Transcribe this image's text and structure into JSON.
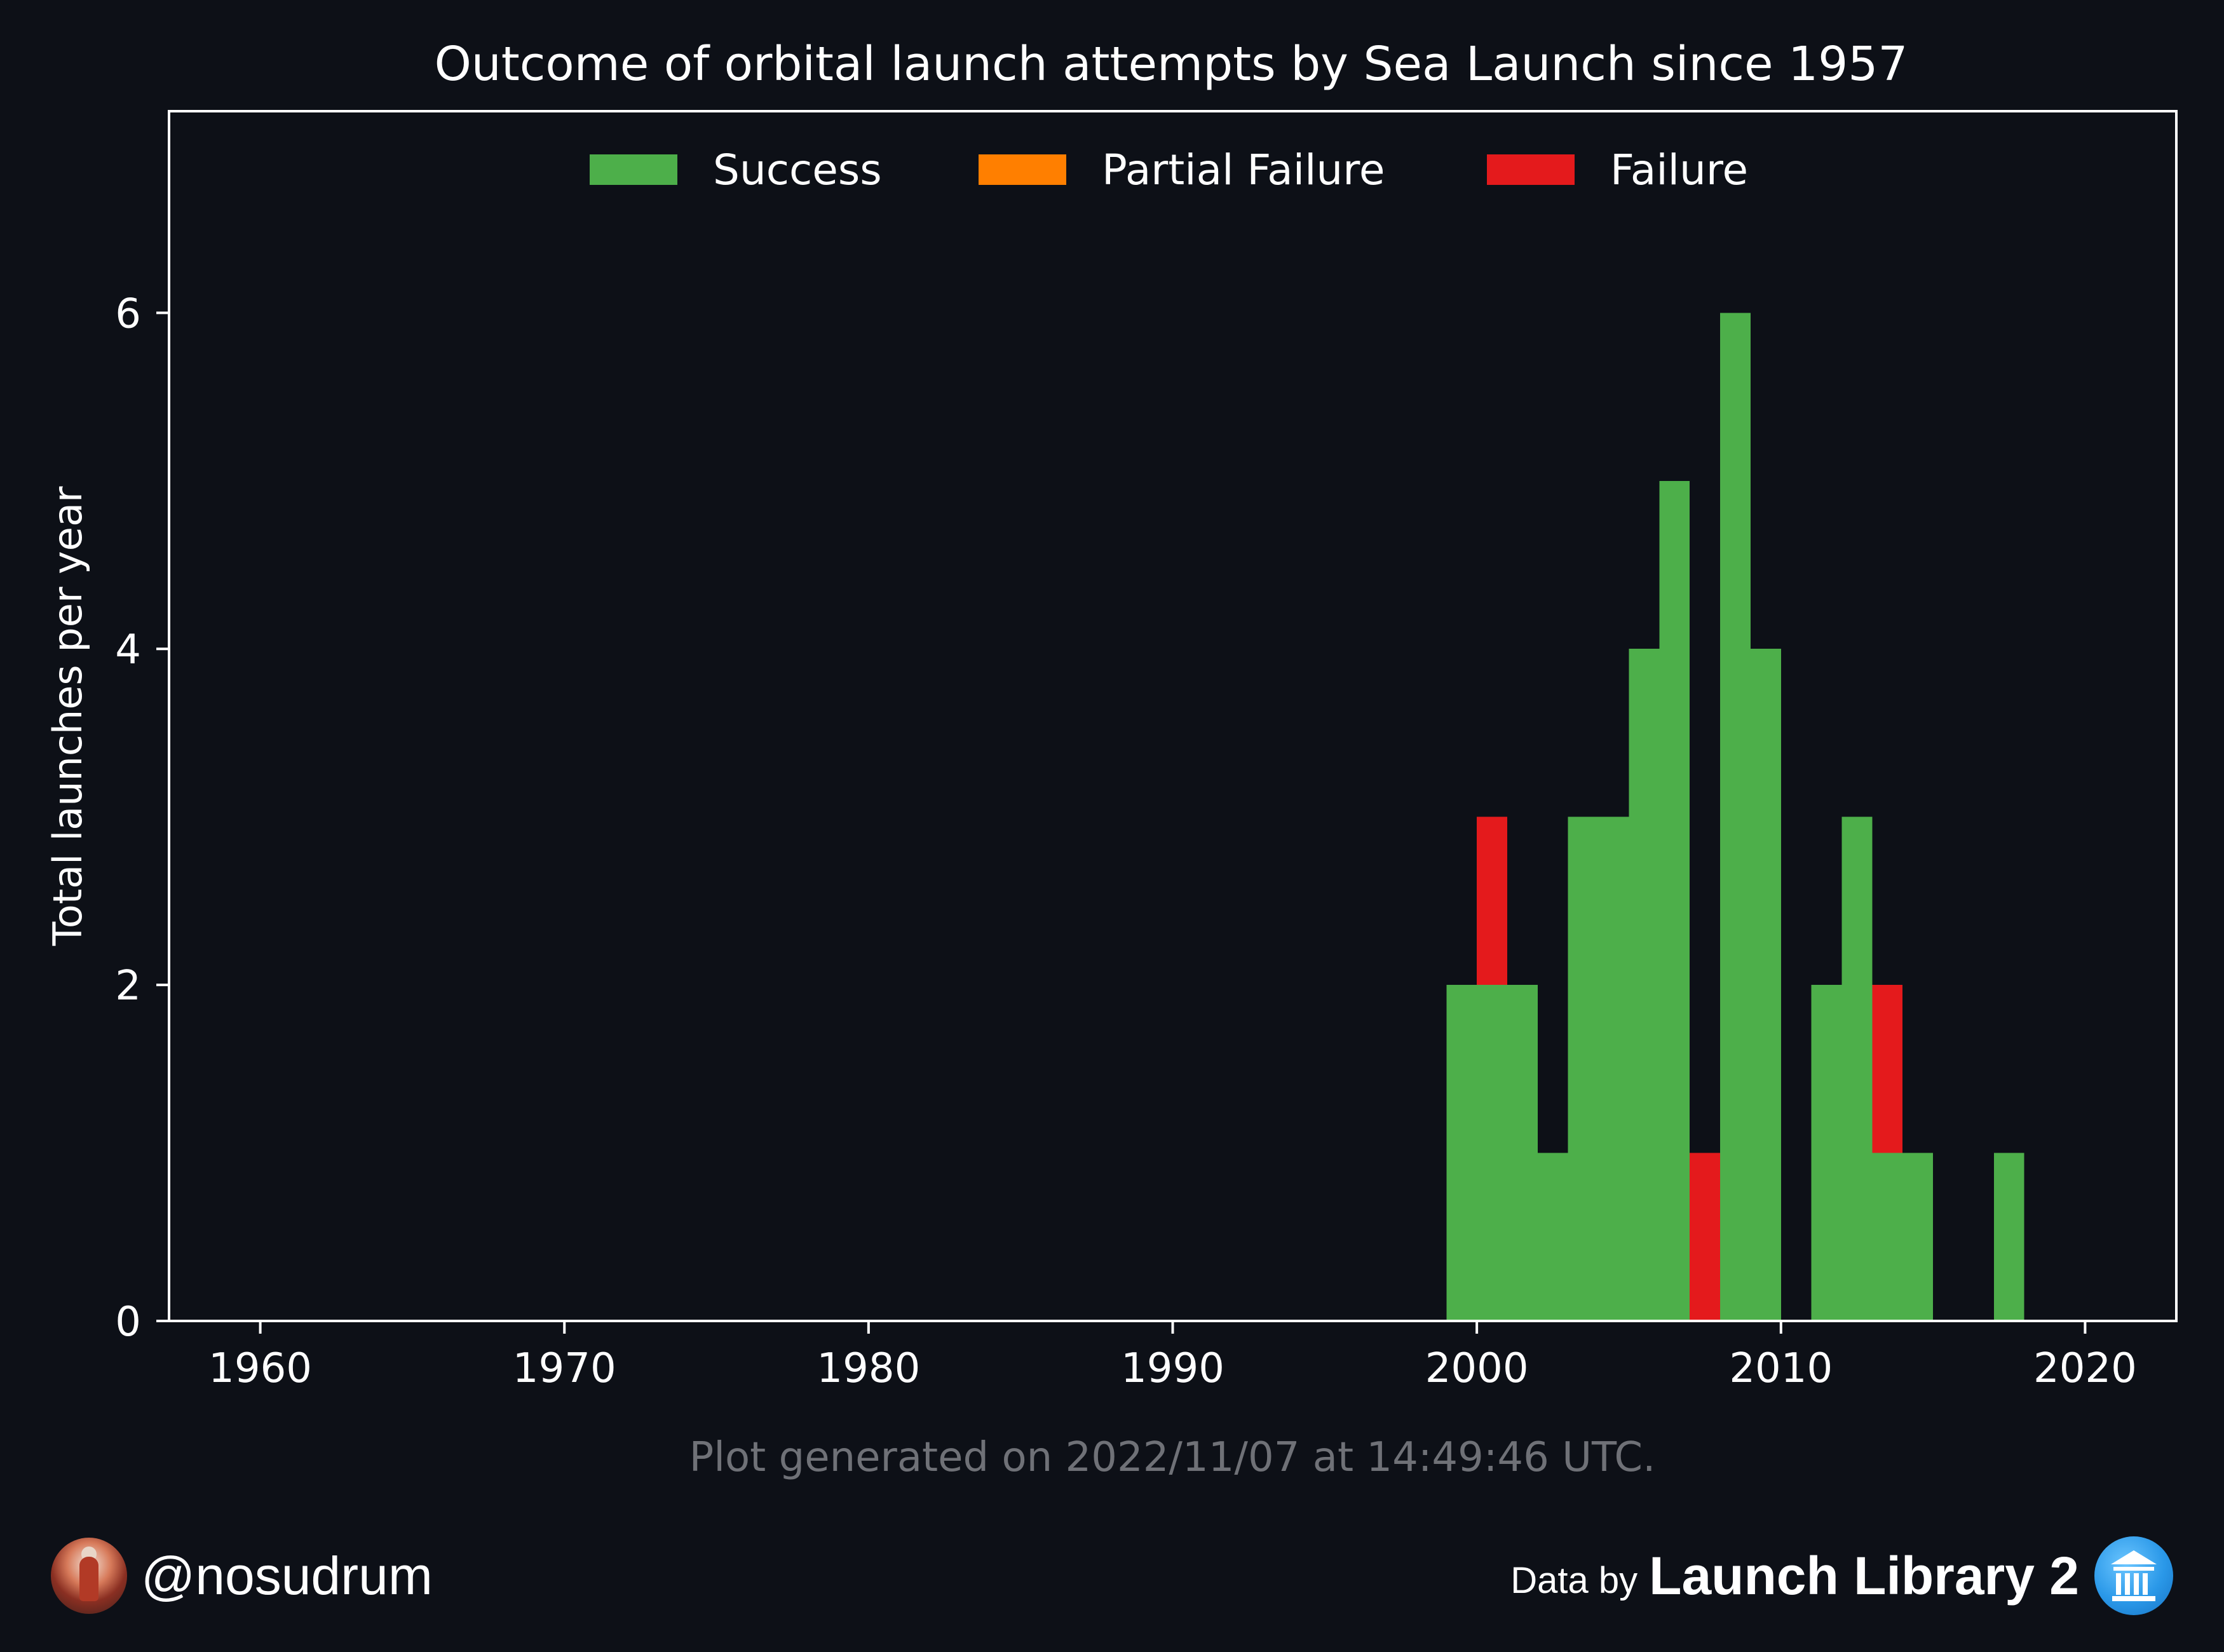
{
  "chart_data": {
    "type": "bar",
    "stacked": true,
    "title": "Outcome of orbital launch attempts by Sea Launch since 1957",
    "xlabel": "",
    "ylabel": "Total launches per year",
    "xlim": [
      1957,
      2023
    ],
    "ylim": [
      0,
      7.2
    ],
    "x_ticks": [
      1960,
      1970,
      1980,
      1990,
      2000,
      2010,
      2020
    ],
    "y_ticks": [
      0,
      2,
      4,
      6
    ],
    "bin_width_years": 1,
    "legend_position": "top-center",
    "grid": false,
    "years": [
      1999,
      2000,
      2001,
      2002,
      2003,
      2004,
      2005,
      2006,
      2007,
      2008,
      2009,
      2010,
      2011,
      2012,
      2013,
      2014,
      2015,
      2016,
      2017
    ],
    "series": [
      {
        "name": "Success",
        "color": "#4daf4a",
        "values": [
          2,
          2,
          2,
          1,
          3,
          3,
          4,
          5,
          0,
          6,
          4,
          0,
          2,
          3,
          1,
          1,
          0,
          0,
          1
        ]
      },
      {
        "name": "Partial Failure",
        "color": "#ff7f00",
        "values": [
          0,
          0,
          0,
          0,
          0,
          0,
          0,
          0,
          0,
          0,
          0,
          0,
          0,
          0,
          0,
          0,
          0,
          0,
          0
        ]
      },
      {
        "name": "Failure",
        "color": "#e41a1c",
        "values": [
          0,
          1,
          0,
          0,
          0,
          0,
          0,
          0,
          1,
          0,
          0,
          0,
          0,
          0,
          1,
          0,
          0,
          0,
          0
        ]
      }
    ]
  },
  "footer": {
    "generated_note": "Plot generated on 2022/11/07 at 14:49:46 UTC.",
    "author_handle": "@nosudrum",
    "data_by_label": "Data by",
    "data_source_name": "Launch Library 2"
  },
  "colors": {
    "background": "#0d1017",
    "axes": "#ffffff",
    "note_text": "#6f7177"
  },
  "icons": {
    "avatar": "astronaut-avatar",
    "source_logo": "launch-library-logo"
  }
}
